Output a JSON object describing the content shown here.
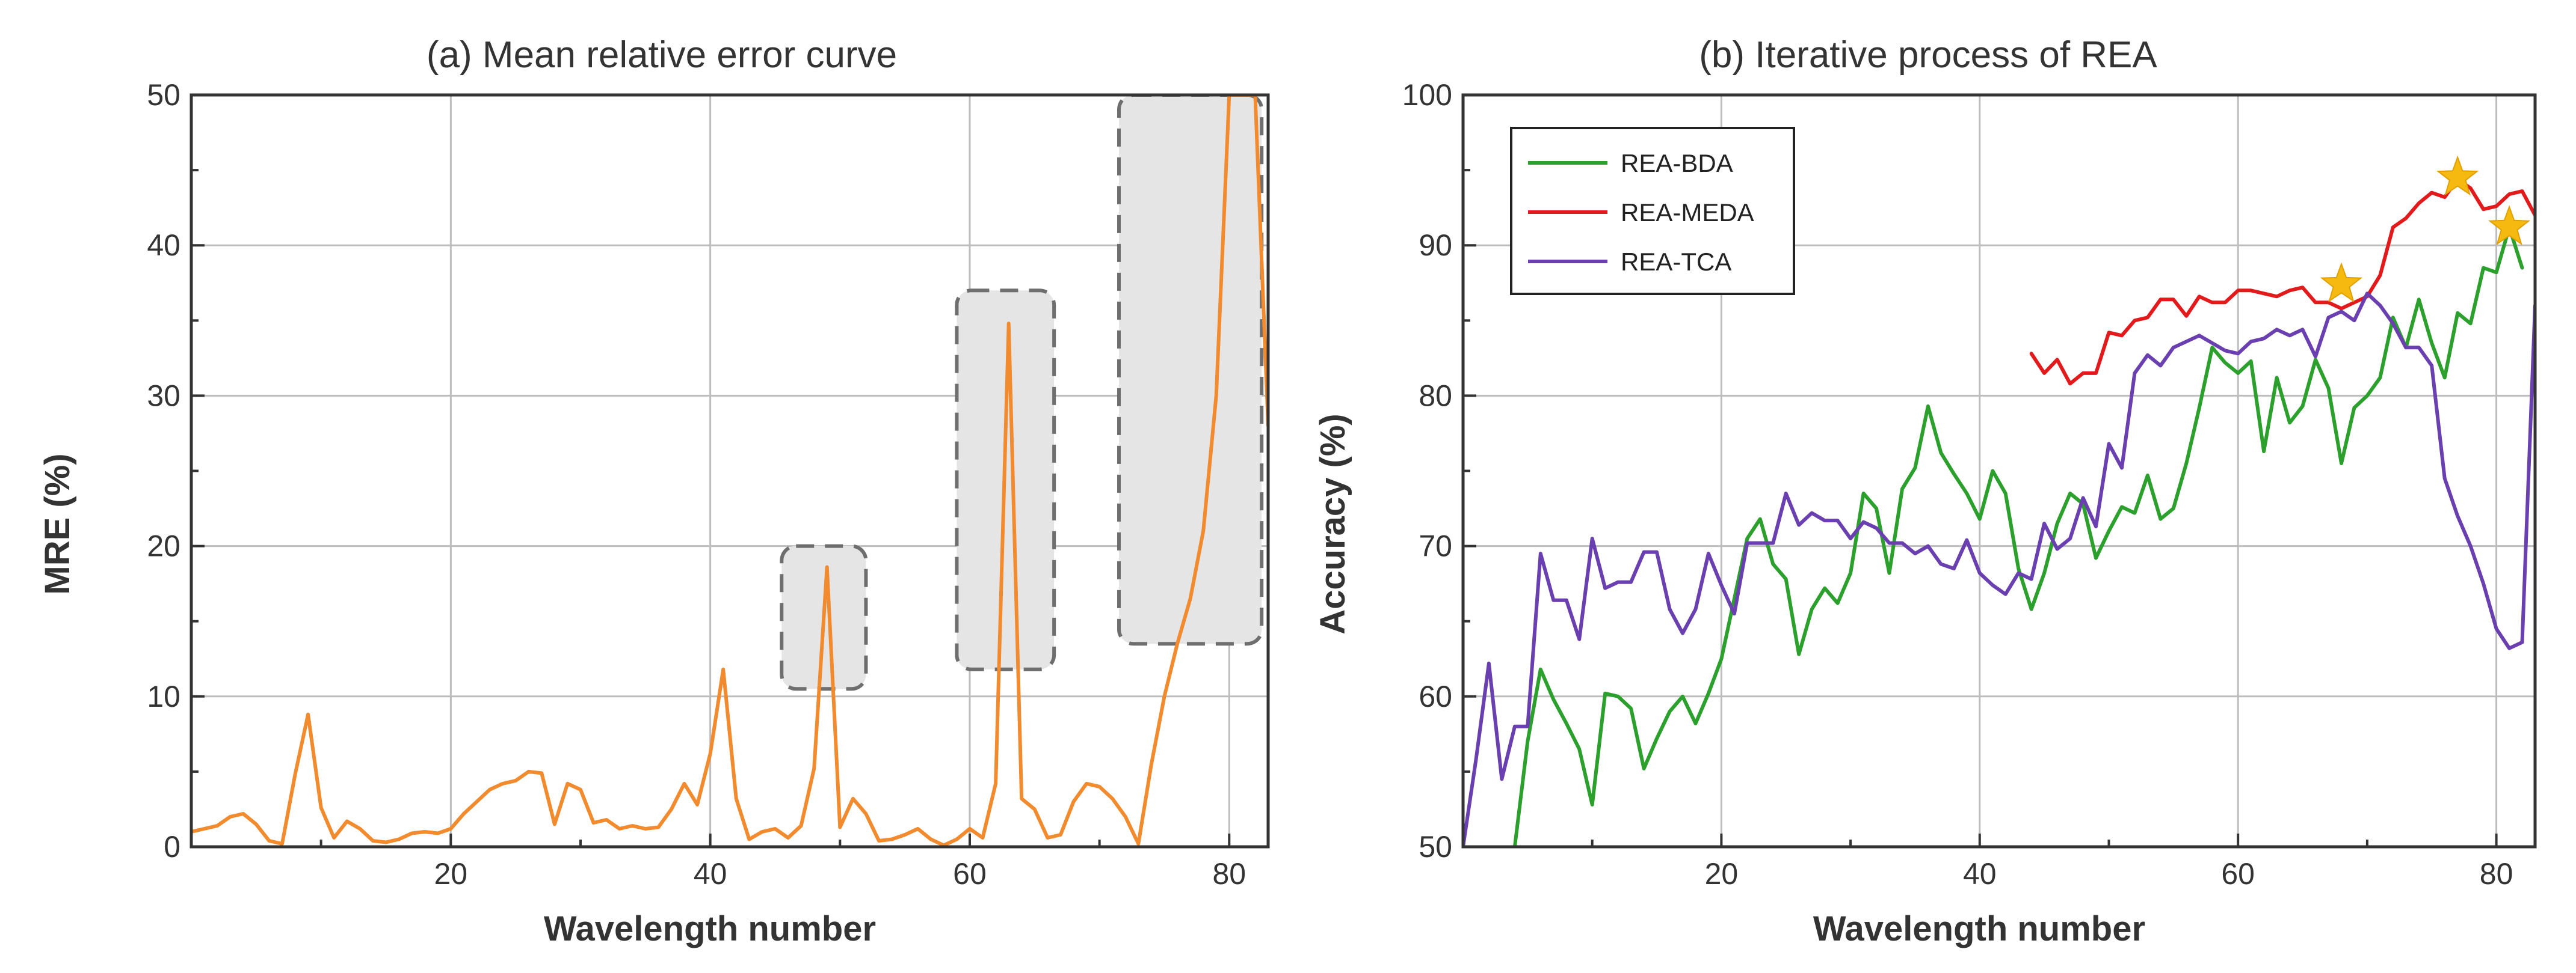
{
  "chart_data": [
    {
      "type": "line",
      "title": "(a) Mean relative error curve",
      "xlabel": "Wavelength number",
      "ylabel": "MRE (%)",
      "xlim": [
        0,
        83
      ],
      "ylim": [
        0,
        50
      ],
      "xticks": [
        20,
        40,
        60,
        80
      ],
      "xtick_labels": [
        "20",
        "40",
        "60",
        "80"
      ],
      "yticks": [
        0,
        10,
        20,
        30,
        40,
        50
      ],
      "ytick_labels": [
        "0",
        "10",
        "20",
        "30",
        "40",
        "50"
      ],
      "grid": true,
      "series": [
        {
          "name": "MRE",
          "color": "#f28a2e",
          "x": [
            0,
            1,
            2,
            3,
            4,
            5,
            6,
            7,
            8,
            9,
            10,
            11,
            12,
            13,
            14,
            15,
            16,
            17,
            18,
            19,
            20,
            21,
            22,
            23,
            24,
            25,
            26,
            27,
            28,
            29,
            30,
            31,
            32,
            33,
            34,
            35,
            36,
            37,
            38,
            39,
            40,
            41,
            42,
            43,
            44,
            45,
            46,
            47,
            48,
            49,
            50,
            51,
            52,
            53,
            54,
            55,
            56,
            57,
            58,
            59,
            60,
            61,
            62,
            63,
            64,
            65,
            66,
            67,
            68,
            69,
            70,
            71,
            72,
            73,
            74,
            75,
            76,
            77,
            78,
            79,
            80,
            81,
            82,
            83
          ],
          "values": [
            1.0,
            1.2,
            1.4,
            2.0,
            2.2,
            1.5,
            0.4,
            0.2,
            4.8,
            8.8,
            2.6,
            0.6,
            1.7,
            1.2,
            0.4,
            0.3,
            0.5,
            0.9,
            1.0,
            0.9,
            1.2,
            2.2,
            3.0,
            3.8,
            4.2,
            4.4,
            5.0,
            4.9,
            1.5,
            4.2,
            3.8,
            1.6,
            1.8,
            1.2,
            1.4,
            1.2,
            1.3,
            2.5,
            4.2,
            2.8,
            6.2,
            11.8,
            3.2,
            0.5,
            1.0,
            1.2,
            0.6,
            1.4,
            5.2,
            18.6,
            1.3,
            3.2,
            2.2,
            0.4,
            0.5,
            0.8,
            1.2,
            0.5,
            0.1,
            0.5,
            1.2,
            0.6,
            4.2,
            34.8,
            3.2,
            2.5,
            0.6,
            0.8,
            3.0,
            4.2,
            4.0,
            3.2,
            2.0,
            0.2,
            5.5,
            10.0,
            13.5,
            16.5,
            21.0,
            30.0,
            50.0,
            50.0,
            50.0,
            28.0
          ]
        }
      ],
      "highlight_regions": [
        {
          "x": [
            45.5,
            52
          ],
          "y": [
            10.5,
            20
          ]
        },
        {
          "x": [
            59,
            66.5
          ],
          "y": [
            11.8,
            37
          ]
        },
        {
          "x": [
            71.5,
            82.5
          ],
          "y": [
            13.5,
            50
          ]
        }
      ]
    },
    {
      "type": "line",
      "title": "(b) Iterative process of REA",
      "xlabel": "Wavelength number",
      "ylabel": "Accuracy (%)",
      "xlim": [
        0,
        83
      ],
      "ylim": [
        50,
        100
      ],
      "xticks": [
        20,
        40,
        60,
        80
      ],
      "xtick_labels": [
        "20",
        "40",
        "60",
        "80"
      ],
      "yticks": [
        50,
        60,
        70,
        80,
        90,
        100
      ],
      "ytick_labels": [
        "50",
        "60",
        "70",
        "80",
        "90",
        "100"
      ],
      "grid": true,
      "legend": "top-left",
      "series": [
        {
          "name": "REA-BDA",
          "color": "#2ca02c",
          "x": [
            4,
            5,
            6,
            7,
            8,
            9,
            10,
            11,
            12,
            13,
            14,
            15,
            16,
            17,
            18,
            19,
            20,
            21,
            22,
            23,
            24,
            25,
            26,
            27,
            28,
            29,
            30,
            31,
            32,
            33,
            34,
            35,
            36,
            37,
            38,
            39,
            40,
            41,
            42,
            43,
            44,
            45,
            46,
            47,
            48,
            49,
            50,
            51,
            52,
            53,
            54,
            55,
            56,
            57,
            58,
            59,
            60,
            61,
            62,
            63,
            64,
            65,
            66,
            67,
            68,
            69,
            70,
            71,
            72,
            73,
            74,
            75,
            76,
            77,
            78,
            79,
            80,
            81,
            82
          ],
          "values": [
            50.0,
            57.0,
            61.8,
            59.8,
            58.2,
            56.5,
            52.8,
            60.2,
            60.0,
            59.2,
            55.2,
            57.2,
            59.0,
            60.0,
            58.2,
            60.2,
            62.5,
            66.5,
            70.5,
            71.8,
            68.8,
            67.8,
            62.8,
            65.8,
            67.2,
            66.2,
            68.2,
            73.5,
            72.5,
            68.2,
            73.8,
            75.2,
            79.3,
            76.2,
            74.8,
            73.5,
            71.8,
            75.0,
            73.5,
            68.5,
            65.8,
            68.2,
            71.5,
            73.5,
            72.8,
            69.2,
            71.0,
            72.6,
            72.2,
            74.7,
            71.8,
            72.5,
            75.5,
            79.2,
            83.2,
            82.2,
            81.5,
            82.3,
            76.3,
            81.2,
            78.2,
            79.3,
            82.4,
            80.5,
            75.5,
            79.2,
            80.0,
            81.2,
            85.2,
            83.2,
            86.4,
            83.5,
            81.2,
            85.5,
            84.8,
            88.5,
            88.2,
            91.2,
            88.5
          ]
        },
        {
          "name": "REA-MEDA",
          "color": "#e31a1c",
          "x": [
            44,
            45,
            46,
            47,
            48,
            49,
            50,
            51,
            52,
            53,
            54,
            55,
            56,
            57,
            58,
            59,
            60,
            61,
            62,
            63,
            64,
            65,
            66,
            67,
            68,
            69,
            70,
            71,
            72,
            73,
            74,
            75,
            76,
            77,
            78,
            79,
            80,
            81,
            82,
            83
          ],
          "values": [
            82.8,
            81.5,
            82.4,
            80.8,
            81.5,
            81.5,
            84.2,
            84.0,
            85.0,
            85.2,
            86.4,
            86.4,
            85.3,
            86.6,
            86.2,
            86.2,
            87.0,
            87.0,
            86.8,
            86.6,
            87.0,
            87.2,
            86.2,
            86.2,
            85.8,
            86.2,
            86.6,
            88.0,
            91.2,
            91.8,
            92.8,
            93.5,
            93.2,
            94.4,
            93.8,
            92.4,
            92.6,
            93.4,
            93.6,
            92.0
          ]
        },
        {
          "name": "REA-TCA",
          "color": "#6a3fb0",
          "x": [
            0,
            1,
            2,
            3,
            4,
            5,
            6,
            7,
            8,
            9,
            10,
            11,
            12,
            13,
            14,
            15,
            16,
            17,
            18,
            19,
            20,
            21,
            22,
            23,
            24,
            25,
            26,
            27,
            28,
            29,
            30,
            31,
            32,
            33,
            34,
            35,
            36,
            37,
            38,
            39,
            40,
            41,
            42,
            43,
            44,
            45,
            46,
            47,
            48,
            49,
            50,
            51,
            52,
            53,
            54,
            55,
            56,
            57,
            58,
            59,
            60,
            61,
            62,
            63,
            64,
            65,
            66,
            67,
            68,
            69,
            70,
            71,
            72,
            73,
            74,
            75,
            76,
            77,
            78,
            79,
            80,
            81,
            82,
            83
          ],
          "values": [
            50.0,
            55.8,
            62.2,
            54.5,
            58.0,
            58.0,
            69.5,
            66.4,
            66.4,
            63.8,
            70.5,
            67.2,
            67.6,
            67.6,
            69.6,
            69.6,
            65.8,
            64.2,
            65.8,
            69.5,
            67.4,
            65.5,
            70.2,
            70.2,
            70.2,
            73.5,
            71.4,
            72.2,
            71.7,
            71.7,
            70.5,
            71.6,
            71.2,
            70.2,
            70.2,
            69.5,
            70.0,
            68.8,
            68.5,
            70.4,
            68.2,
            67.4,
            66.8,
            68.2,
            67.8,
            71.5,
            69.8,
            70.5,
            73.2,
            71.3,
            76.8,
            75.2,
            81.5,
            82.7,
            82.0,
            83.2,
            83.6,
            84.0,
            83.5,
            83.0,
            82.8,
            83.6,
            83.8,
            84.4,
            84.0,
            84.4,
            82.6,
            85.2,
            85.6,
            85.0,
            86.8,
            86.0,
            84.8,
            83.2,
            83.2,
            82.0,
            74.5,
            72.0,
            70.0,
            67.5,
            64.5,
            63.2,
            63.6,
            86.0
          ]
        }
      ],
      "optimal_markers": [
        {
          "x": 68,
          "y": 87.4
        },
        {
          "x": 77,
          "y": 94.5
        },
        {
          "x": 81,
          "y": 91.2
        }
      ],
      "marker_color": "#f5b90f"
    }
  ]
}
